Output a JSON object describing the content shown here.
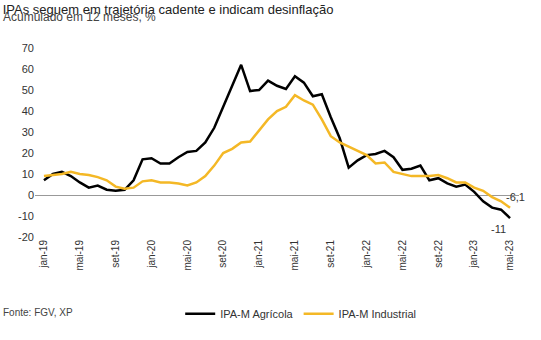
{
  "chart_data": {
    "type": "line",
    "title": "IPAs seguem em trajetória cadente e indicam desinflação",
    "subtitle": "Acumulado em 12 meses, %",
    "source": "Fonte: FGV, XP",
    "categories": [
      "jan-19",
      null,
      null,
      null,
      "mai-19",
      null,
      null,
      null,
      "set-19",
      null,
      null,
      null,
      "jan-20",
      null,
      null,
      null,
      "mai-20",
      null,
      null,
      null,
      "set-20",
      null,
      null,
      null,
      "jan-21",
      null,
      null,
      null,
      "mai-21",
      null,
      null,
      null,
      "set-21",
      null,
      null,
      null,
      "jan-22",
      null,
      null,
      null,
      "mai-22",
      null,
      null,
      null,
      "set-22",
      null,
      null,
      null,
      "jan-23",
      null,
      null,
      null,
      "mai-23"
    ],
    "series": [
      {
        "name": "IPA-M Agrícola",
        "color": "#000000",
        "values": [
          7,
          10,
          11,
          9,
          6,
          3.5,
          4.5,
          2.5,
          2,
          2.5,
          7,
          17,
          17.5,
          15,
          15,
          18,
          20.5,
          21,
          25,
          32,
          42,
          52,
          62,
          49.5,
          50,
          54.5,
          52,
          50.5,
          56.5,
          53.5,
          47,
          48,
          37,
          27,
          13,
          16.5,
          19,
          19.5,
          21,
          18,
          12,
          12.5,
          14,
          7,
          8,
          5.5,
          4,
          5,
          1.5,
          -3,
          -6,
          -7,
          -11
        ]
      },
      {
        "name": "IPA-M Industrial",
        "color": "#f4b826",
        "values": [
          9,
          9.5,
          10,
          11,
          10,
          9.5,
          8.5,
          7,
          4,
          3,
          3.5,
          6.5,
          7,
          6,
          6,
          5.5,
          4.5,
          6,
          9,
          14,
          20,
          22,
          25,
          25.5,
          31,
          36,
          40,
          42,
          47.5,
          45,
          43,
          36,
          28,
          25,
          23,
          21,
          19,
          15,
          15.5,
          11,
          10,
          9,
          9,
          9,
          9.5,
          8,
          6,
          6,
          3.5,
          2,
          -1,
          -3,
          -6.1
        ]
      }
    ],
    "annotations": [
      {
        "text": "-6,1",
        "x": "mai-23",
        "y": -6.1
      },
      {
        "text": "-11",
        "x": "mai-23",
        "y": -11
      }
    ],
    "ylim": [
      -20,
      70
    ],
    "yticks": [
      -20,
      -10,
      0,
      10,
      20,
      30,
      40,
      50,
      60,
      70
    ],
    "grid": false,
    "legend": "bottom"
  }
}
